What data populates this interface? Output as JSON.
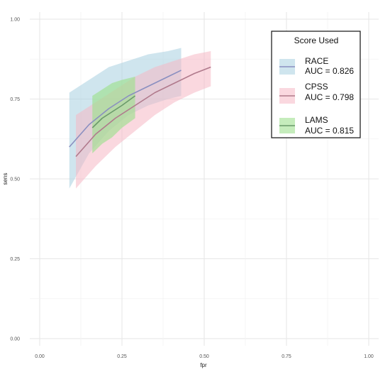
{
  "chart_data": {
    "type": "line",
    "xlabel": "fpr",
    "ylabel": "sens",
    "xlim": [
      0,
      1
    ],
    "ylim": [
      0,
      1
    ],
    "x_ticks": [
      "0.00",
      "0.25",
      "0.50",
      "0.75",
      "1.00"
    ],
    "y_ticks": [
      "0.00",
      "0.25",
      "0.50",
      "0.75",
      "1.00"
    ],
    "grid": true,
    "legend": {
      "title": "Score Used",
      "placement": "top-right",
      "entries": [
        {
          "line1": "RACE",
          "line2": "AUC = 0.826"
        },
        {
          "line1": "CPSS",
          "line2": "AUC = 0.798"
        },
        {
          "line1": "LAMS",
          "line2": "AUC = 0.815"
        }
      ]
    },
    "series": [
      {
        "key": "race",
        "line_color": "#8a8fc0",
        "band_color": "#a8cfe0",
        "x": [
          0.09,
          0.15,
          0.21,
          0.27,
          0.33,
          0.39,
          0.43
        ],
        "y": [
          0.6,
          0.67,
          0.72,
          0.76,
          0.79,
          0.82,
          0.84
        ],
        "lower": [
          0.47,
          0.58,
          0.65,
          0.7,
          0.73,
          0.75,
          0.76
        ],
        "upper": [
          0.77,
          0.81,
          0.85,
          0.87,
          0.89,
          0.9,
          0.91
        ]
      },
      {
        "key": "cpss",
        "line_color": "#b07a8c",
        "band_color": "#f5b8c4",
        "x": [
          0.11,
          0.17,
          0.23,
          0.29,
          0.35,
          0.41,
          0.47,
          0.52
        ],
        "y": [
          0.57,
          0.64,
          0.69,
          0.73,
          0.77,
          0.8,
          0.83,
          0.85
        ],
        "lower": [
          0.47,
          0.54,
          0.6,
          0.65,
          0.7,
          0.74,
          0.77,
          0.79
        ],
        "upper": [
          0.7,
          0.74,
          0.78,
          0.82,
          0.85,
          0.87,
          0.89,
          0.9
        ]
      },
      {
        "key": "lams",
        "line_color": "#6a9a6a",
        "band_color": "#9ee08f",
        "x": [
          0.16,
          0.19,
          0.22,
          0.25,
          0.29
        ],
        "y": [
          0.66,
          0.69,
          0.71,
          0.73,
          0.76
        ],
        "lower": [
          0.58,
          0.61,
          0.63,
          0.66,
          0.69
        ],
        "upper": [
          0.76,
          0.78,
          0.8,
          0.81,
          0.82
        ]
      }
    ]
  }
}
